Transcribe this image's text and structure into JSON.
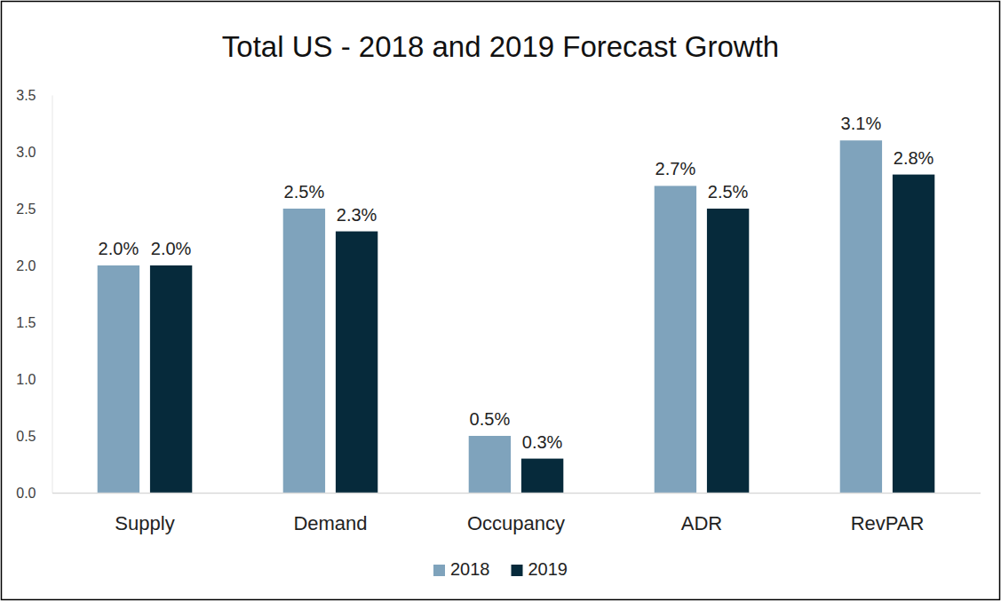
{
  "chart_data": {
    "type": "bar",
    "title": "Total US - 2018 and 2019 Forecast Growth",
    "categories": [
      "Supply",
      "Demand",
      "Occupancy",
      "ADR",
      "RevPAR"
    ],
    "series": [
      {
        "name": "2018",
        "color": "#7fa3bc",
        "values": [
          2.0,
          2.5,
          0.5,
          2.7,
          3.1
        ],
        "value_labels": [
          "2.0%",
          "2.5%",
          "0.5%",
          "2.7%",
          "3.1%"
        ]
      },
      {
        "name": "2019",
        "color": "#062a3b",
        "values": [
          2.0,
          2.3,
          0.3,
          2.5,
          2.8
        ],
        "value_labels": [
          "2.0%",
          "2.3%",
          "0.3%",
          "2.5%",
          "2.8%"
        ]
      }
    ],
    "ylim": [
      0,
      3.5
    ],
    "yticks": [
      {
        "value": 0,
        "label": "0.0"
      },
      0.5,
      {
        "value": 1,
        "label": "1.0"
      },
      1.5,
      {
        "value": 2,
        "label": "2.0"
      },
      2.5,
      {
        "value": 3,
        "label": "3.0"
      },
      3.5
    ],
    "grid": false,
    "legend": "bottom",
    "data_labels": true
  }
}
